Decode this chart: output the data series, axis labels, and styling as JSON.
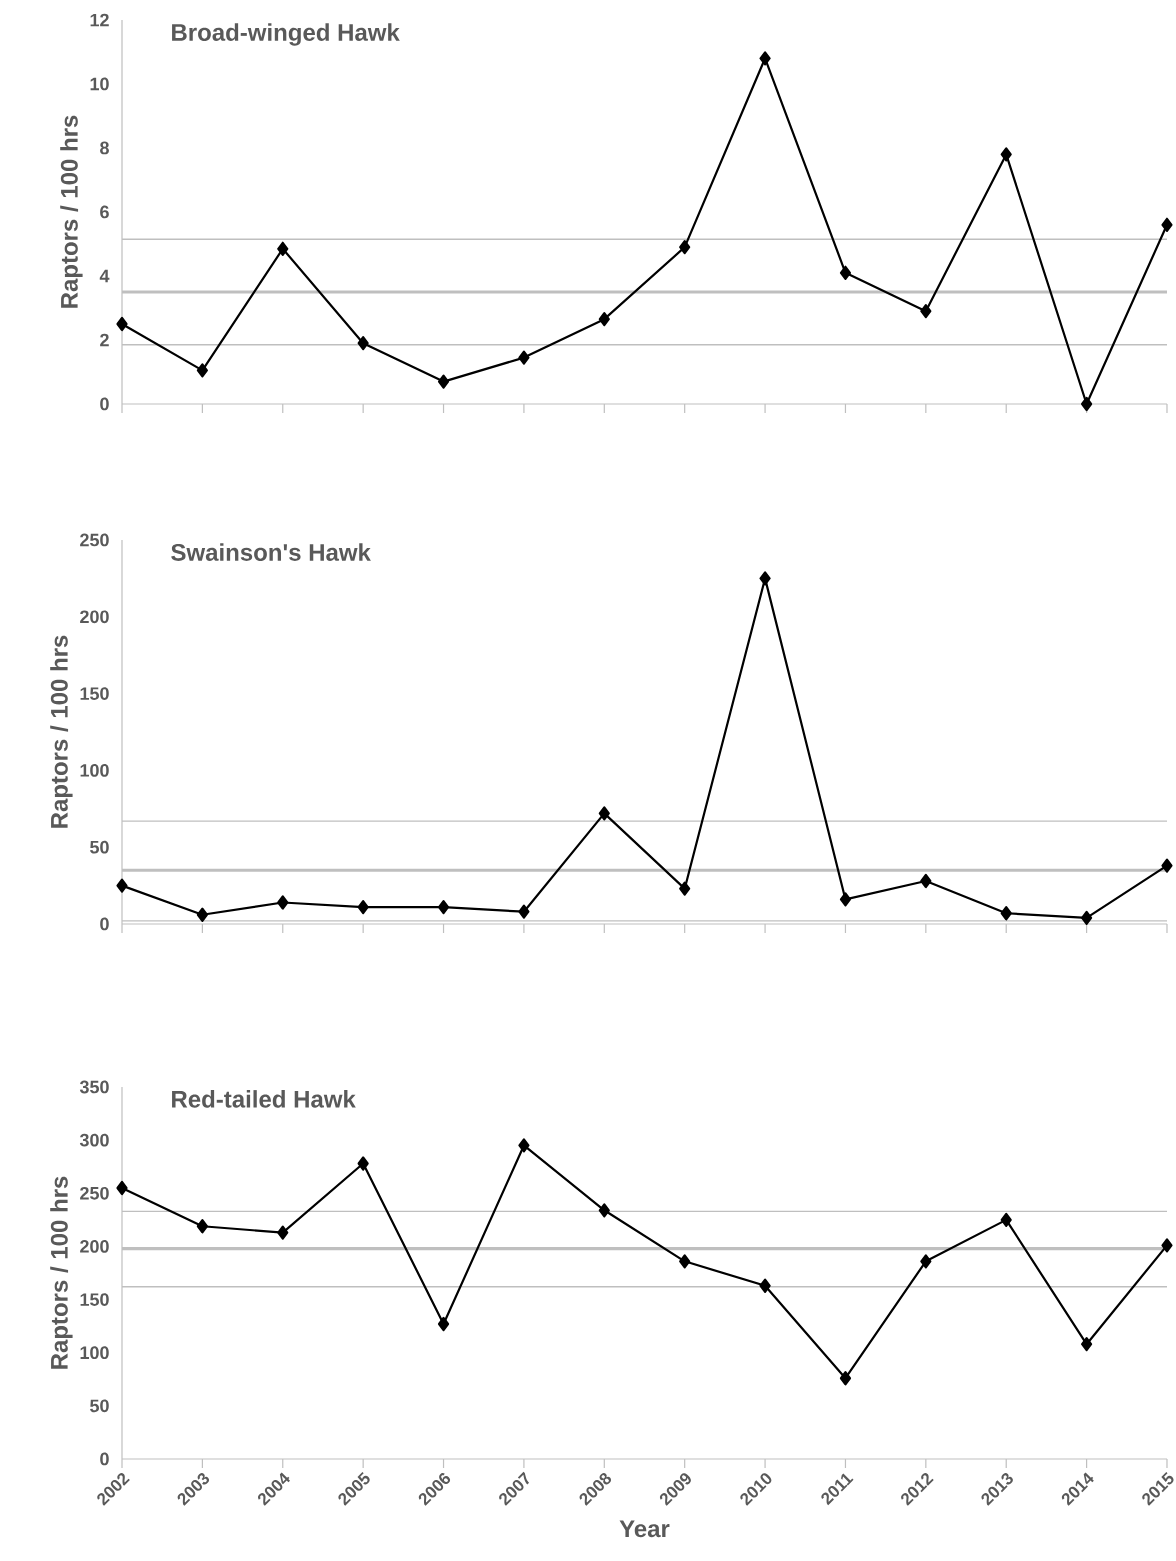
{
  "chart_data": [
    {
      "type": "line",
      "title": "Broad-winged Hawk",
      "ylabel": "Raptors / 100 hrs",
      "x": [
        2002,
        2003,
        2004,
        2005,
        2006,
        2007,
        2008,
        2009,
        2010,
        2011,
        2012,
        2013,
        2014,
        2015
      ],
      "series": [
        {
          "color": "#000000",
          "values": [
            2.5,
            1.05,
            4.85,
            1.9,
            0.7,
            1.45,
            2.65,
            4.9,
            10.8,
            4.1,
            2.9,
            7.8,
            0,
            5.6
          ]
        }
      ],
      "xlim": [
        2002,
        2015
      ],
      "xticks": [
        2002,
        2003,
        2004,
        2005,
        2006,
        2007,
        2008,
        2009,
        2010,
        2011,
        2012,
        2013,
        2014,
        2015
      ],
      "ylim": [
        0,
        12
      ],
      "yticks": [
        0,
        2,
        4,
        6,
        8,
        10,
        12
      ],
      "tick_labels": "y",
      "marker": "diamond",
      "line_style": "solid",
      "ref_lines": [
        {
          "axis": "y",
          "value": 3.5,
          "color": "#bfbfbf"
        },
        {
          "axis": "y",
          "value": 5.15,
          "color": "#bfbfbf"
        },
        {
          "axis": "y",
          "value": 1.85,
          "color": "#bfbfbf"
        }
      ]
    },
    {
      "type": "line",
      "title": "Swainson's Hawk",
      "ylabel": "Raptors / 100 hrs",
      "x": [
        2002,
        2003,
        2004,
        2005,
        2006,
        2007,
        2008,
        2009,
        2010,
        2011,
        2012,
        2013,
        2014,
        2015
      ],
      "series": [
        {
          "color": "#000000",
          "values": [
            25,
            6,
            14,
            11,
            11,
            8,
            72,
            23,
            225,
            16,
            28,
            7,
            4,
            38
          ]
        }
      ],
      "xlim": [
        2002,
        2015
      ],
      "xticks": [
        2002,
        2003,
        2004,
        2005,
        2006,
        2007,
        2008,
        2009,
        2010,
        2011,
        2012,
        2013,
        2014,
        2015
      ],
      "ylim": [
        0,
        250
      ],
      "yticks": [
        0,
        50,
        100,
        150,
        200,
        250
      ],
      "tick_labels": "y",
      "marker": "diamond",
      "line_style": "solid",
      "ref_lines": [
        {
          "axis": "y",
          "value": 35,
          "color": "#bfbfbf"
        },
        {
          "axis": "y",
          "value": 67,
          "color": "#bfbfbf"
        },
        {
          "axis": "y",
          "value": 2,
          "color": "#bfbfbf"
        }
      ]
    },
    {
      "type": "line",
      "title": "Red-tailed Hawk",
      "xlabel": "Year",
      "ylabel": "Raptors / 100 hrs",
      "x": [
        2002,
        2003,
        2004,
        2005,
        2006,
        2007,
        2008,
        2009,
        2010,
        2011,
        2012,
        2013,
        2014,
        2015
      ],
      "series": [
        {
          "color": "#000000",
          "values": [
            255,
            219,
            213,
            278,
            127,
            295,
            234,
            186,
            163,
            76,
            186,
            225,
            108,
            201
          ]
        }
      ],
      "xlim": [
        2002,
        2015
      ],
      "xticks": [
        2002,
        2003,
        2004,
        2005,
        2006,
        2007,
        2008,
        2009,
        2010,
        2011,
        2012,
        2013,
        2014,
        2015
      ],
      "ylim": [
        0,
        350
      ],
      "yticks": [
        0,
        50,
        100,
        150,
        200,
        250,
        300,
        350
      ],
      "marker": "diamond",
      "line_style": "solid",
      "ref_lines": [
        {
          "axis": "y",
          "value": 198,
          "color": "#bfbfbf"
        },
        {
          "axis": "y",
          "value": 233,
          "color": "#bfbfbf"
        },
        {
          "axis": "y",
          "value": 162,
          "color": "#bfbfbf"
        }
      ]
    }
  ]
}
